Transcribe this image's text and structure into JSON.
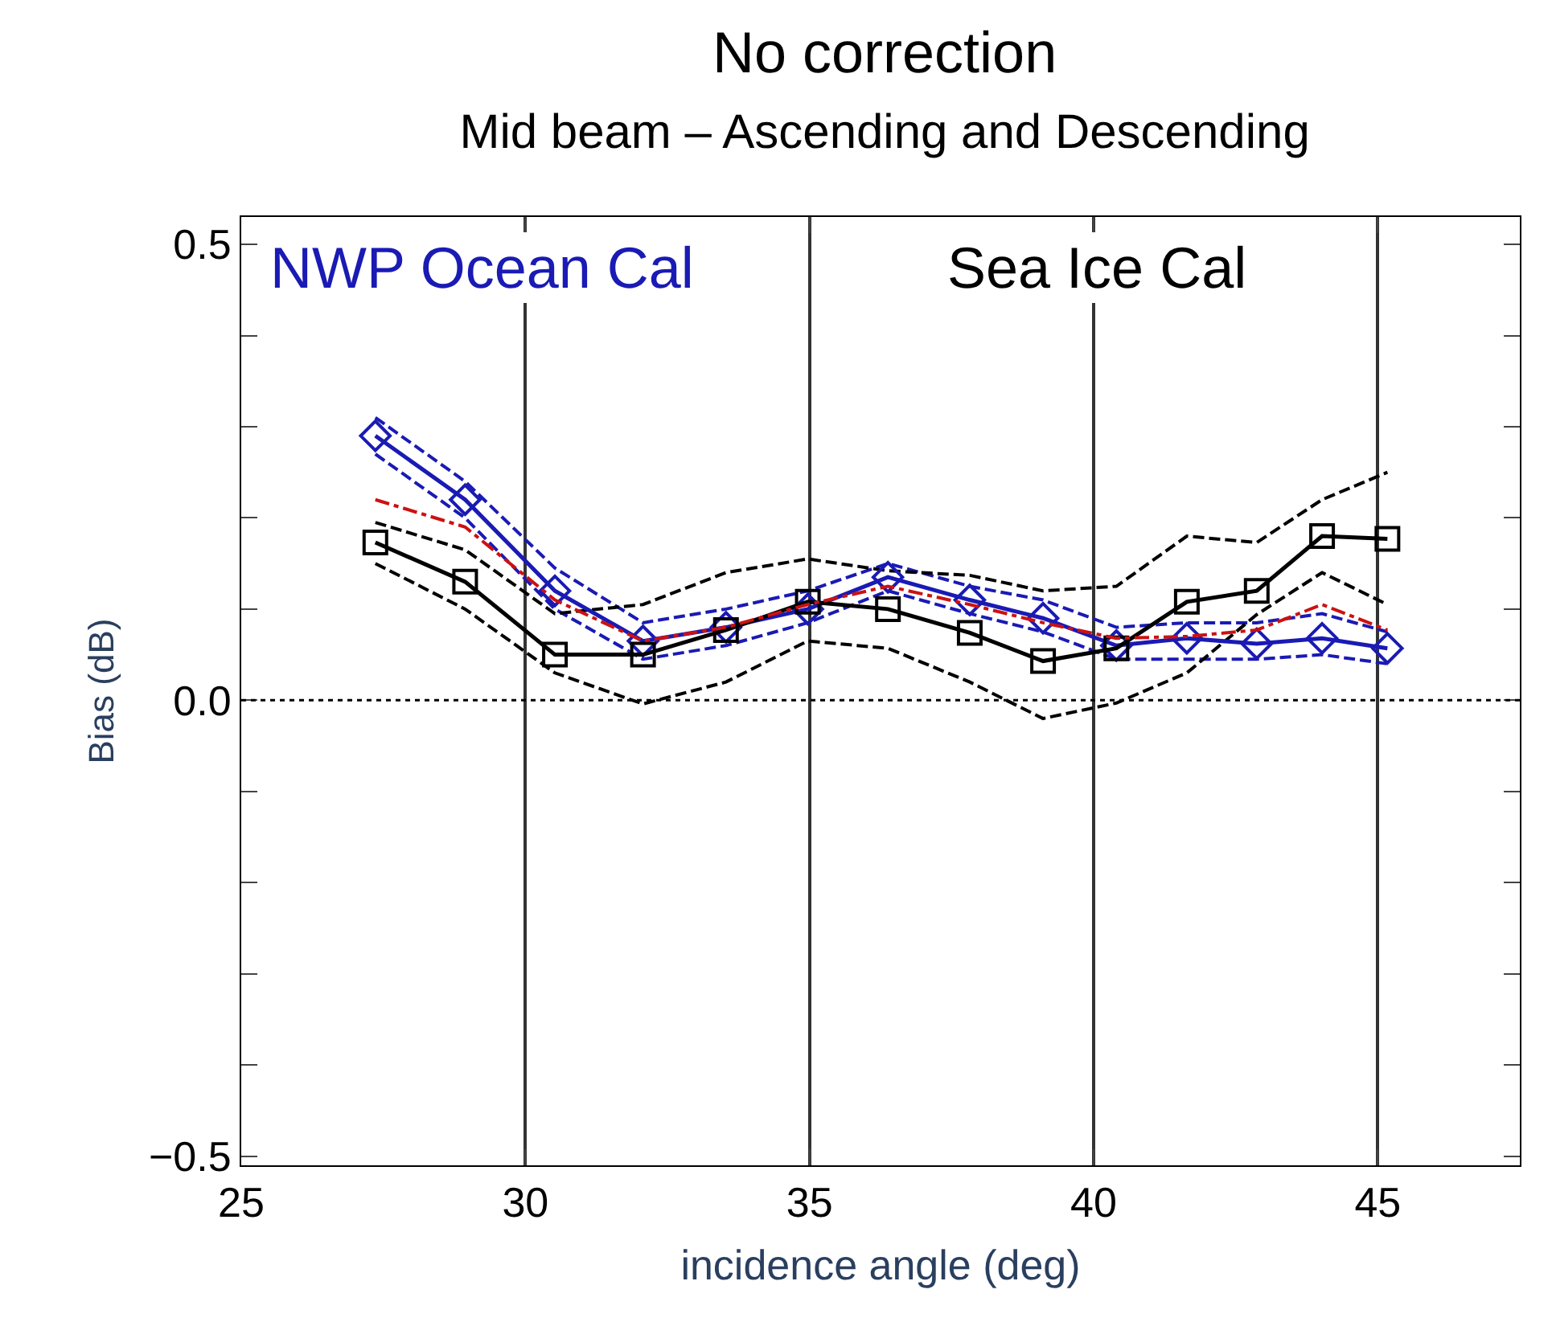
{
  "chart_data": {
    "type": "line",
    "title": "No correction",
    "subtitle": "Mid beam – Ascending and Descending",
    "xlabel": "incidence angle (deg)",
    "ylabel": "Bias (dB)",
    "x": [
      27.36,
      28.94,
      30.52,
      32.07,
      33.53,
      34.97,
      36.38,
      37.82,
      39.11,
      40.4,
      41.64,
      42.87,
      44.02,
      45.17
    ],
    "series": [
      {
        "color": "#1a1ab4",
        "marker": "none",
        "line_style": "dashed",
        "values": [
          0.27,
          0.2,
          0.1,
          0.045,
          0.06,
          0.085,
          0.12,
          0.095,
          0.075,
          0.045,
          0.045,
          0.045,
          0.05,
          0.04
        ]
      },
      {
        "color": "#1a1ab4",
        "marker": "none",
        "line_style": "dashed",
        "values": [
          0.31,
          0.24,
          0.145,
          0.085,
          0.1,
          0.12,
          0.15,
          0.125,
          0.11,
          0.08,
          0.085,
          0.085,
          0.095,
          0.075
        ]
      },
      {
        "color": "#000000",
        "marker": "none",
        "line_style": "dashed",
        "values": [
          0.15,
          0.1,
          0.03,
          -0.004,
          0.02,
          0.065,
          0.057,
          0.02,
          -0.02,
          -0.003,
          0.03,
          0.094,
          0.14,
          0.105
        ]
      },
      {
        "color": "#000000",
        "marker": "none",
        "line_style": "dashed",
        "values": [
          0.195,
          0.165,
          0.095,
          0.105,
          0.14,
          0.155,
          0.142,
          0.137,
          0.12,
          0.125,
          0.18,
          0.173,
          0.22,
          0.25
        ]
      },
      {
        "name": "NWP Ocean Cal",
        "color": "#1a1ab4",
        "marker": "diamond",
        "line_style": "solid",
        "values": [
          0.29,
          0.22,
          0.12,
          0.065,
          0.08,
          0.1,
          0.135,
          0.11,
          0.09,
          0.06,
          0.068,
          0.062,
          0.068,
          0.057
        ]
      },
      {
        "name": "Sea Ice Cal",
        "color": "#000000",
        "marker": "square",
        "line_style": "solid",
        "values": [
          0.173,
          0.13,
          0.05,
          0.05,
          0.077,
          0.108,
          0.1,
          0.074,
          0.043,
          0.057,
          0.108,
          0.12,
          0.18,
          0.177
        ]
      },
      {
        "color": "#cc1111",
        "marker": "none",
        "line_style": "dashdot",
        "values": [
          0.22,
          0.19,
          0.11,
          0.065,
          0.08,
          0.105,
          0.125,
          0.105,
          0.085,
          0.068,
          0.07,
          0.077,
          0.105,
          0.077
        ]
      }
    ],
    "xlim": [
      25,
      47.5
    ],
    "xticks": [
      25,
      30,
      35,
      40,
      45
    ],
    "ylim": [
      -0.51,
      0.53
    ],
    "yticks": [
      {
        "value": -0.5,
        "label": "−0.5"
      },
      {
        "value": -0.4,
        "label": null
      },
      {
        "value": -0.3,
        "label": null
      },
      {
        "value": -0.2,
        "label": null
      },
      {
        "value": -0.1,
        "label": null
      },
      {
        "value": 0.0,
        "label": "0.0"
      },
      {
        "value": 0.1,
        "label": null
      },
      {
        "value": 0.2,
        "label": null
      },
      {
        "value": 0.3,
        "label": null
      },
      {
        "value": 0.4,
        "label": null
      },
      {
        "value": 0.5,
        "label": "0.5"
      }
    ],
    "ref_lines": [
      {
        "axis": "y",
        "value": 0,
        "label": null,
        "color": "#000000",
        "line_style": "dotted"
      }
    ],
    "grid": "x"
  }
}
